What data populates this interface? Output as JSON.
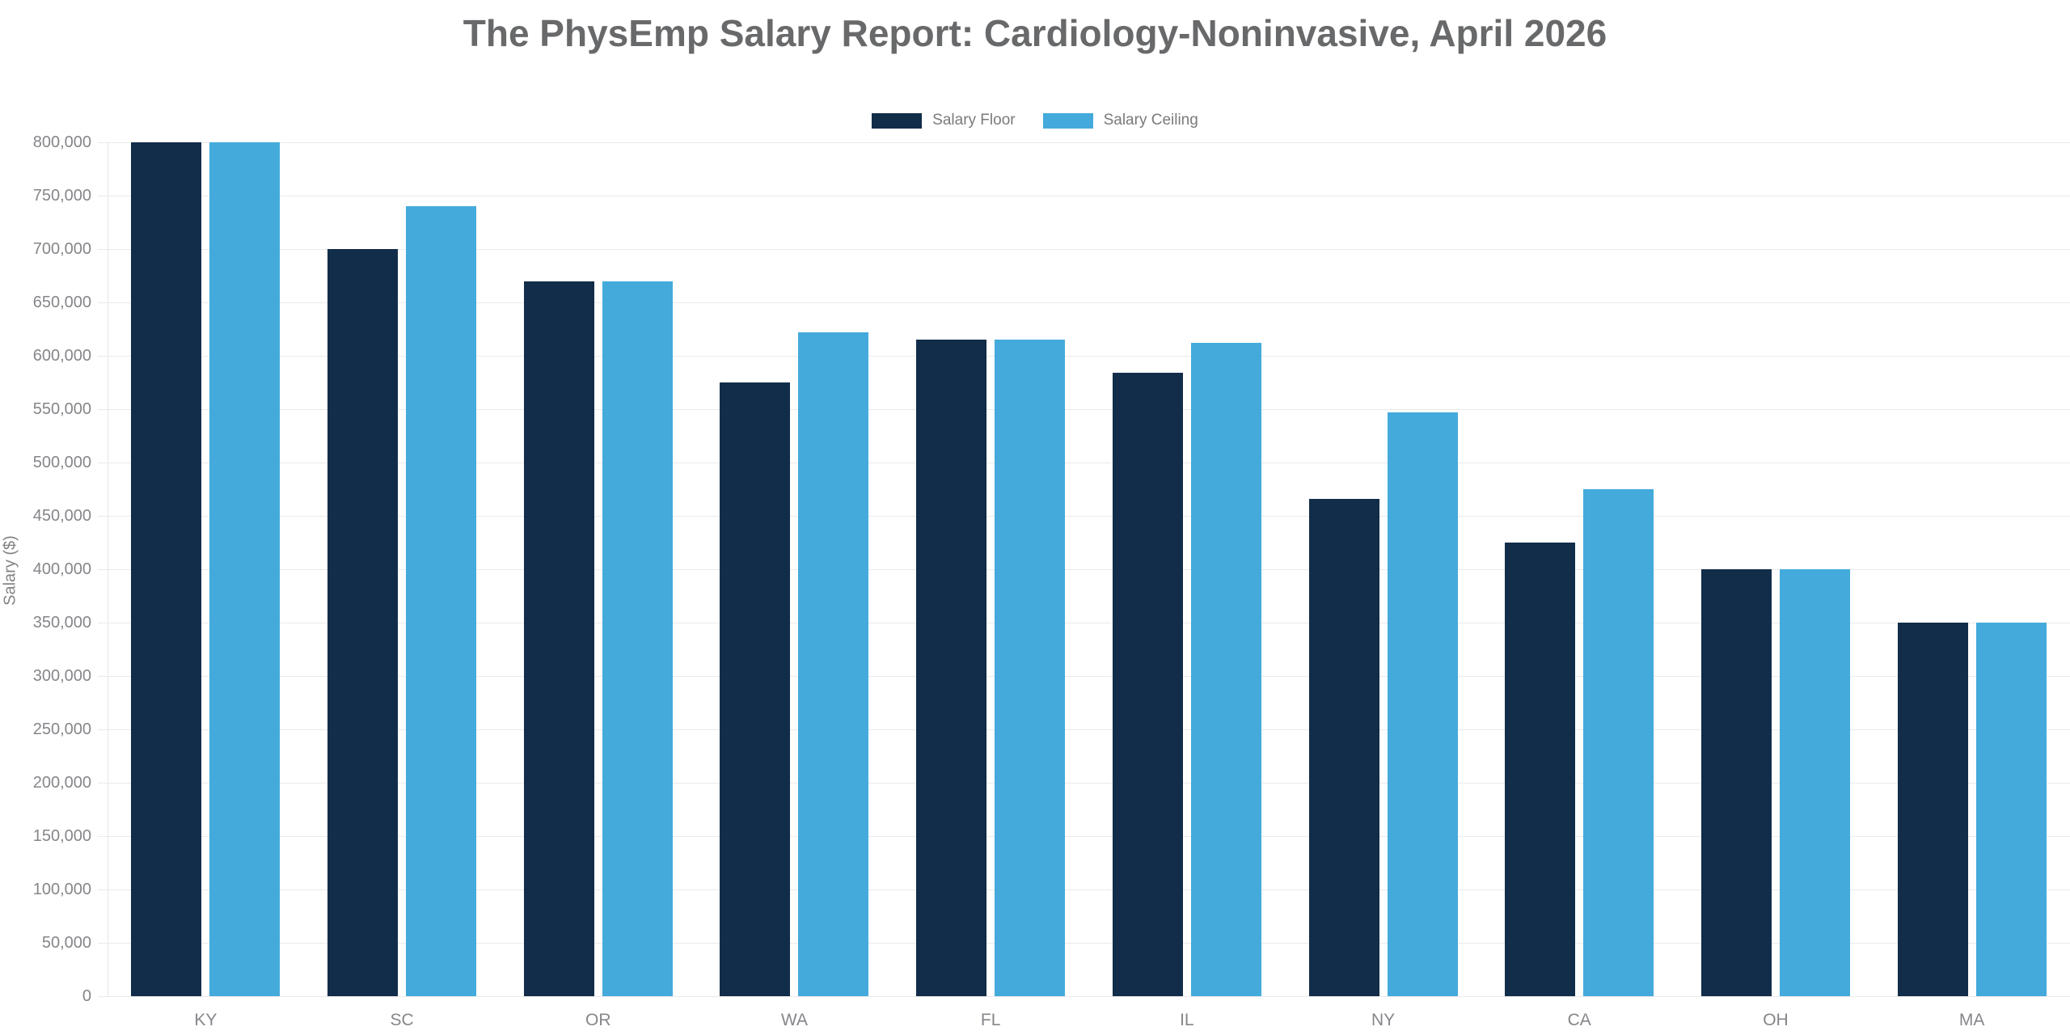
{
  "chart_data": {
    "type": "bar",
    "title": "The PhysEmp Salary Report: Cardiology-Noninvasive, April 2026",
    "categories": [
      "KY",
      "SC",
      "OR",
      "WA",
      "FL",
      "IL",
      "NY",
      "CA",
      "OH",
      "MA"
    ],
    "series": [
      {
        "name": "Salary Floor",
        "color": "#112D4A",
        "values": [
          800000,
          700000,
          670000,
          575000,
          615000,
          584000,
          466000,
          425000,
          400000,
          350000
        ]
      },
      {
        "name": "Salary Ceiling",
        "color": "#44AADB",
        "values": [
          800000,
          740000,
          670000,
          622000,
          615000,
          612000,
          547000,
          475000,
          400000,
          350000
        ]
      }
    ],
    "xlabel": "",
    "ylabel": "Salary ($)",
    "ylim": [
      0,
      800000
    ],
    "ytick_step": 50000,
    "ytick_format": "thousands-comma",
    "grid": "horizontal",
    "legend_position": "top",
    "style": {
      "title_color": "#68696b",
      "axis_text_color": "#85868a",
      "legend_text_color": "#7a7a7a",
      "grid_color": "#eaeaea",
      "background_color": "#ffffff"
    }
  }
}
